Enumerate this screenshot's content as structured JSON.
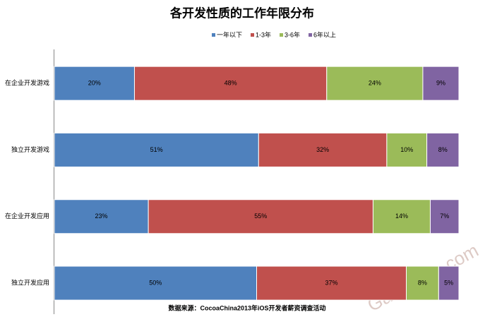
{
  "chart_data": {
    "type": "stacked-bar-100",
    "title": "各开发性质的工作年限分布",
    "categories": [
      "在企业开发游戏",
      "独立开发游戏",
      "在企业开发应用",
      "独立开发应用"
    ],
    "series": [
      {
        "name": "一年以下",
        "color": "#4f81bd",
        "values": [
          20,
          51,
          23,
          50
        ],
        "value_labels": [
          "20%",
          "51%",
          "23%",
          "50%"
        ]
      },
      {
        "name": "1-3年",
        "color": "#c0504d",
        "values": [
          48,
          32,
          55,
          37
        ],
        "value_labels": [
          "48%",
          "32%",
          "55%",
          "37%"
        ]
      },
      {
        "name": "3-6年",
        "color": "#9bbb59",
        "values": [
          24,
          10,
          14,
          8
        ],
        "value_labels": [
          "24%",
          "10%",
          "14%",
          "8%"
        ]
      },
      {
        "name": "6年以上",
        "color": "#8064a2",
        "values": [
          9,
          8,
          7,
          5
        ],
        "value_labels": [
          "9%",
          "8%",
          "7%",
          "5%"
        ]
      }
    ],
    "source": "数据来源：CocoaChina2013年iOS开发者薪资调查活动",
    "watermark": "GameRes.com"
  }
}
